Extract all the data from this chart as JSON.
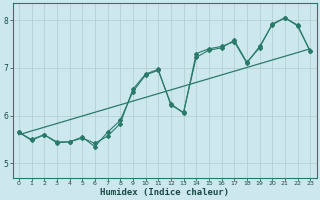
{
  "xlabel": "Humidex (Indice chaleur)",
  "background_color": "#cce8ee",
  "grid_color": "#b0cccc",
  "line_color": "#2a7a6a",
  "xlim": [
    -0.5,
    23.5
  ],
  "ylim": [
    4.7,
    8.35
  ],
  "yticks": [
    5,
    6,
    7,
    8
  ],
  "xticks": [
    0,
    1,
    2,
    3,
    4,
    5,
    6,
    7,
    8,
    9,
    10,
    11,
    12,
    13,
    14,
    15,
    16,
    17,
    18,
    19,
    20,
    21,
    22,
    23
  ],
  "line1": [
    5.65,
    5.5,
    5.6,
    5.45,
    5.45,
    5.55,
    5.35,
    5.65,
    5.9,
    6.5,
    6.85,
    6.95,
    6.25,
    6.05,
    7.3,
    7.4,
    7.45,
    7.55,
    7.1,
    7.45,
    7.9,
    8.05,
    7.9,
    7.35
  ],
  "line2": [
    5.65,
    5.48,
    5.6,
    5.43,
    5.45,
    5.53,
    5.42,
    5.57,
    5.83,
    6.55,
    6.87,
    6.97,
    6.22,
    6.07,
    7.22,
    7.37,
    7.42,
    7.58,
    7.12,
    7.42,
    7.92,
    8.05,
    7.88,
    7.35
  ],
  "trend_x": [
    0,
    23
  ],
  "trend_y": [
    5.6,
    7.4
  ]
}
